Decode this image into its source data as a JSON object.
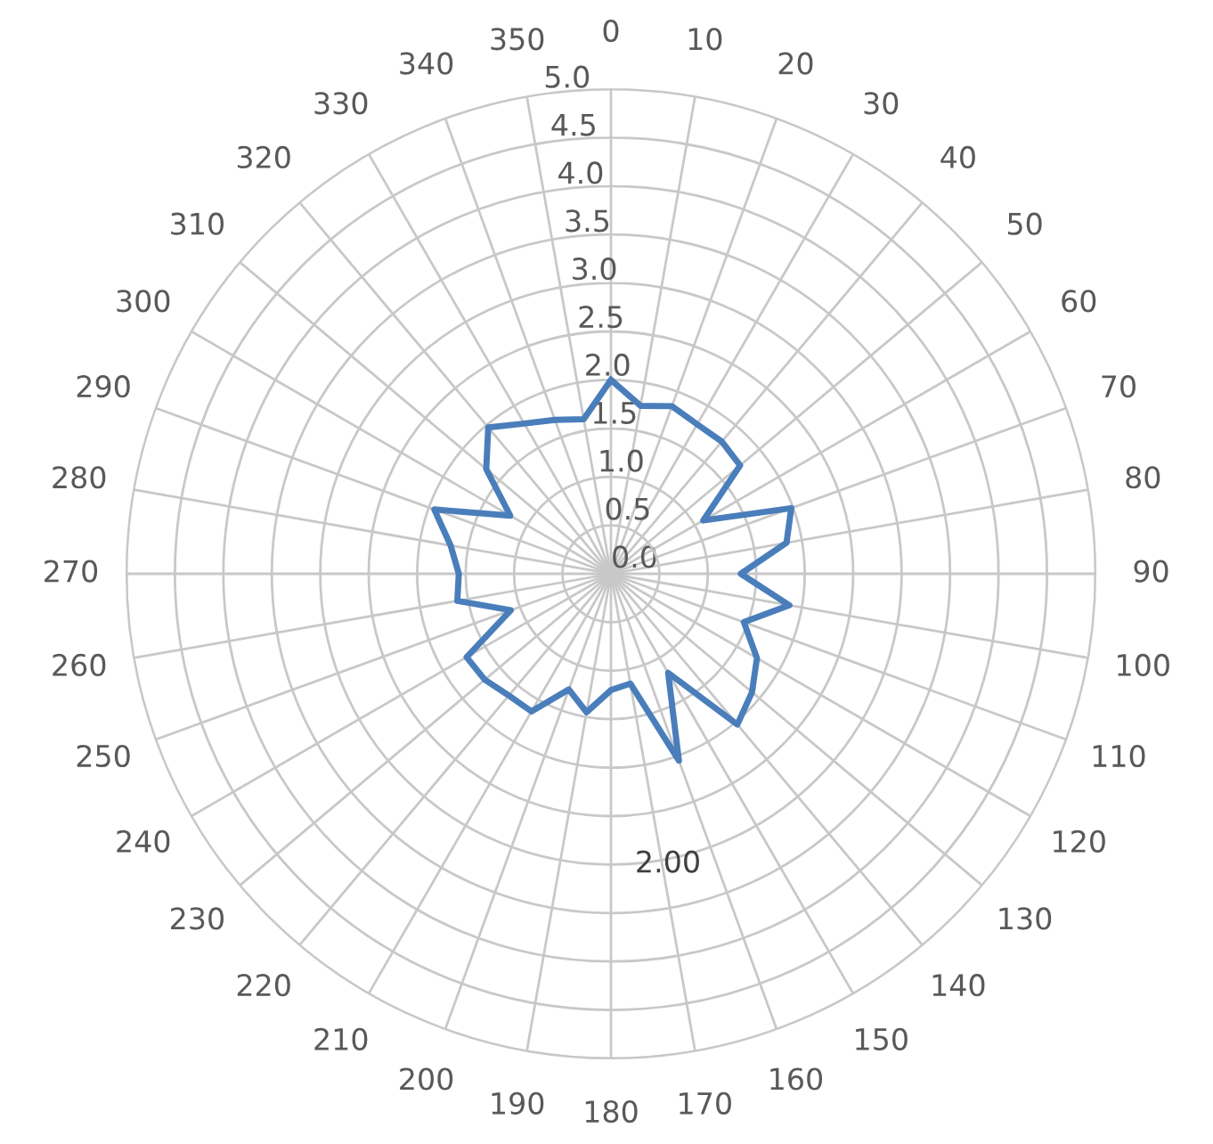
{
  "chart_data": {
    "type": "radar",
    "categories": [
      "0",
      "10",
      "20",
      "30",
      "40",
      "50",
      "60",
      "70",
      "80",
      "90",
      "100",
      "110",
      "120",
      "130",
      "140",
      "150",
      "160",
      "170",
      "180",
      "190",
      "200",
      "210",
      "220",
      "230",
      "240",
      "250",
      "260",
      "270",
      "280",
      "290",
      "300",
      "310",
      "320",
      "330",
      "340",
      "350"
    ],
    "series": [
      {
        "color": "#4a7ebb",
        "values": [
          2.0,
          1.76,
          1.84,
          1.78,
          1.78,
          1.74,
          1.1,
          1.98,
          1.84,
          1.34,
          1.87,
          1.46,
          1.74,
          1.9,
          2.03,
          1.18,
          2.05,
          1.15,
          1.2,
          1.45,
          1.27,
          1.64,
          1.64,
          1.7,
          1.72,
          1.1,
          1.61,
          1.57,
          1.68,
          1.94,
          1.2,
          1.68,
          1.97,
          1.79,
          1.69,
          1.62
        ]
      }
    ],
    "ylim": [
      0,
      5.0
    ],
    "yticks": [
      {
        "value": 0,
        "label": "0.0"
      },
      {
        "value": 0.5,
        "label": "0.5"
      },
      {
        "value": 1.0,
        "label": "1.0"
      },
      {
        "value": 1.5,
        "label": "1.5"
      },
      {
        "value": 2.0,
        "label": "2.0"
      },
      {
        "value": 2.5,
        "label": "2.5"
      },
      {
        "value": 3.0,
        "label": "3.0"
      },
      {
        "value": 3.5,
        "label": "3.5"
      },
      {
        "value": 4.0,
        "label": "4.0"
      },
      {
        "value": 4.5,
        "label": "4.5"
      },
      {
        "value": 5.0,
        "label": "5.0"
      }
    ],
    "grid": true,
    "annotations": [
      "2.00"
    ]
  }
}
